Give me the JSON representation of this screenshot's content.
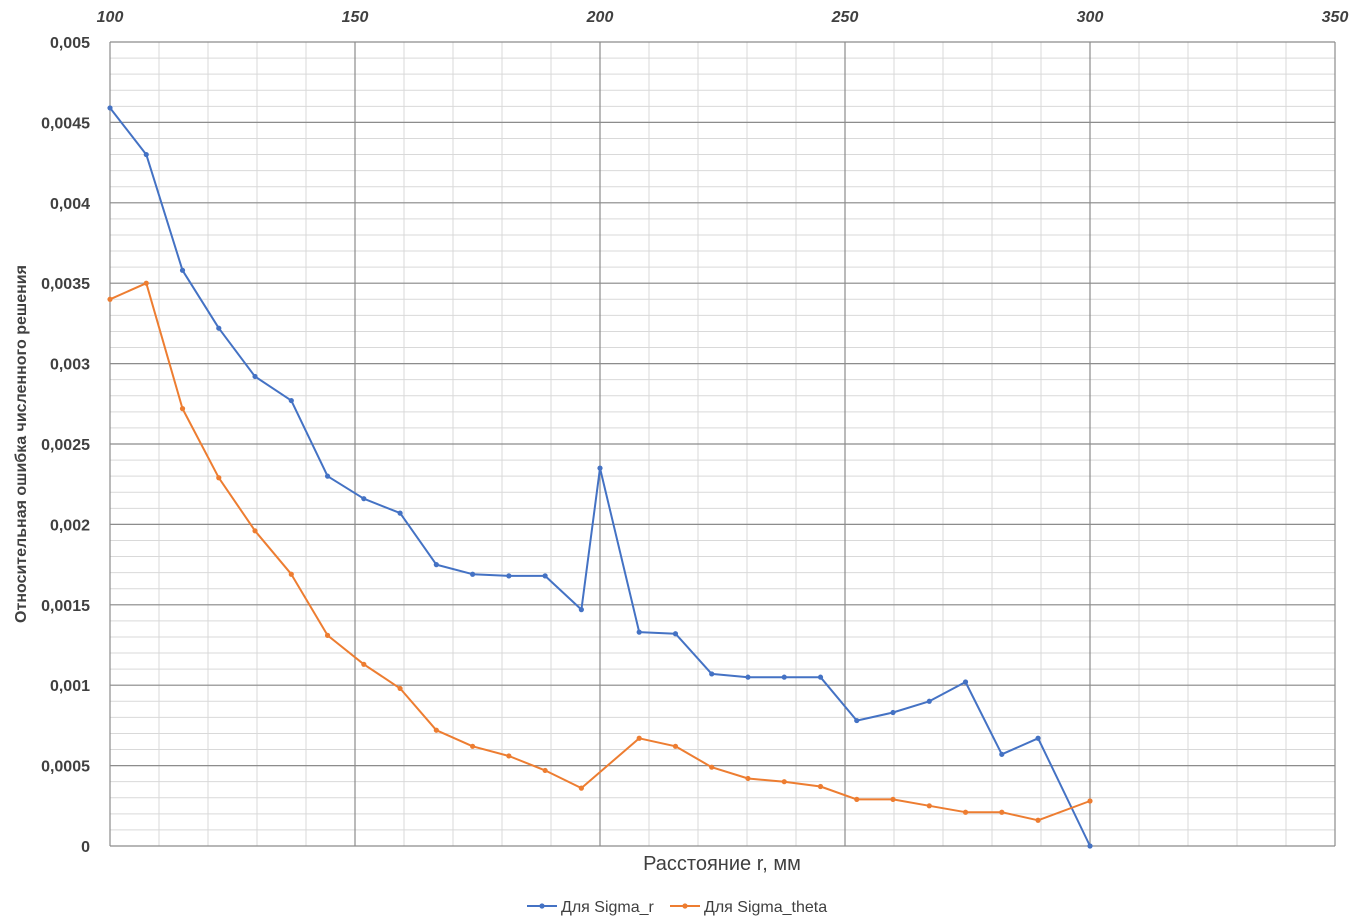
{
  "chart_data": {
    "type": "line",
    "xlabel": "Расстояние r, мм",
    "ylabel": "Относительная ошибка численного решения",
    "xlim": [
      100,
      350
    ],
    "ylim": [
      0,
      0.005
    ],
    "x_ticks": [
      "100",
      "150",
      "200",
      "250",
      "300",
      "350"
    ],
    "y_ticks": [
      "0",
      "0,0005",
      "0,001",
      "0,0015",
      "0,002",
      "0,0025",
      "0,003",
      "0,0035",
      "0,004",
      "0,0045",
      "0,005"
    ],
    "x_axis_position": "top",
    "grid": true,
    "legend_position": "bottom",
    "series": [
      {
        "name": "Для Sigma_r",
        "color": "#4472C4",
        "x": [
          100,
          107.4,
          114.8,
          122.2,
          129.6,
          137,
          144.4,
          151.8,
          159.2,
          166.6,
          174,
          181.4,
          188.8,
          196.2,
          200,
          208,
          215.4,
          222.8,
          230.2,
          237.6,
          245,
          252.4,
          259.8,
          267.2,
          274.6,
          282,
          289.4,
          300
        ],
        "values": [
          0.00459,
          0.0043,
          0.00358,
          0.00322,
          0.00292,
          0.00277,
          0.0023,
          0.00216,
          0.00207,
          0.00175,
          0.00169,
          0.00168,
          0.00168,
          0.00147,
          0.00235,
          0.00133,
          0.00132,
          0.00107,
          0.00105,
          0.00105,
          0.00105,
          0.00078,
          0.00083,
          0.0009,
          0.00102,
          0.00057,
          0.00067,
          0.0
        ]
      },
      {
        "name": "Для Sigma_theta",
        "color": "#ED7D31",
        "x": [
          100,
          107.4,
          114.8,
          122.2,
          129.6,
          137,
          144.4,
          151.8,
          159.2,
          166.6,
          174,
          181.4,
          188.8,
          196.2,
          208,
          215.4,
          222.8,
          230.2,
          237.6,
          245,
          252.4,
          259.8,
          267.2,
          274.6,
          282,
          289.4,
          300
        ],
        "values": [
          0.0034,
          0.0035,
          0.00272,
          0.00229,
          0.00196,
          0.00169,
          0.00131,
          0.00113,
          0.00098,
          0.00072,
          0.00062,
          0.00056,
          0.00047,
          0.00036,
          0.00067,
          0.00062,
          0.00049,
          0.00042,
          0.0004,
          0.00037,
          0.00029,
          0.00029,
          0.00025,
          0.00021,
          0.00021,
          0.00016,
          0.00028
        ]
      }
    ]
  }
}
